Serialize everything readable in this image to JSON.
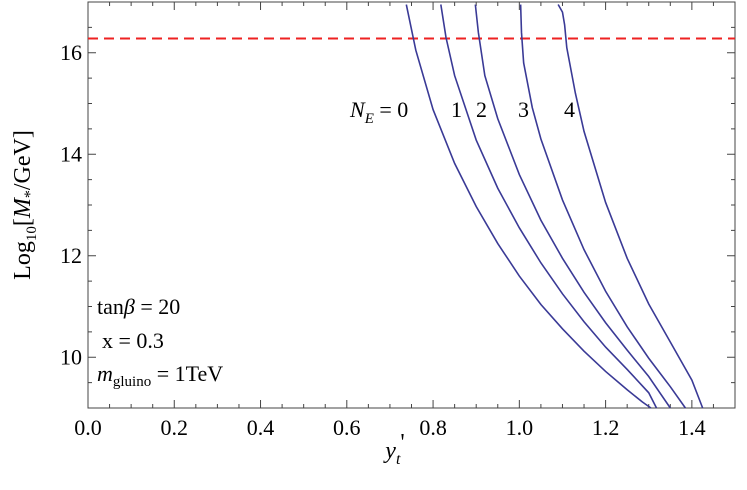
{
  "chart_data": {
    "type": "line",
    "xlabel_main": "y",
    "xlabel_sub": "t",
    "xlabel_prime": "'",
    "ylabel_pre": "Log",
    "ylabel_sub": "10",
    "ylabel_mid": "[",
    "ylabel_M": "M",
    "ylabel_star": "*",
    "ylabel_post": "/GeV]",
    "xlim": [
      0.0,
      1.5
    ],
    "ylim": [
      9.0,
      17.0
    ],
    "x_ticks": [
      0.0,
      0.2,
      0.4,
      0.6,
      0.8,
      1.0,
      1.2,
      1.4
    ],
    "x_tick_labels": [
      "0.0",
      "0.2",
      "0.4",
      "0.6",
      "0.8",
      "1.0",
      "1.2",
      "1.4"
    ],
    "y_ticks": [
      10,
      12,
      14,
      16
    ],
    "y_tick_labels": [
      "10",
      "12",
      "14",
      "16"
    ],
    "hline": {
      "y": 16.28,
      "color": "#ee2222",
      "style": "dashed"
    },
    "series_color": "#3a3a96",
    "series": [
      {
        "label": "0",
        "x": [
          0.738,
          0.76,
          0.8,
          0.85,
          0.9,
          0.95,
          1.0,
          1.05,
          1.1,
          1.15,
          1.2,
          1.25,
          1.285,
          1.305
        ],
        "y": [
          16.95,
          16.05,
          14.88,
          13.82,
          12.97,
          12.24,
          11.6,
          11.04,
          10.56,
          10.12,
          9.72,
          9.36,
          9.12,
          9.0
        ]
      },
      {
        "label": "1",
        "x": [
          0.818,
          0.83,
          0.85,
          0.9,
          0.95,
          1.0,
          1.05,
          1.1,
          1.15,
          1.2,
          1.25,
          1.3,
          1.318
        ],
        "y": [
          16.95,
          16.3,
          15.55,
          14.28,
          13.33,
          12.55,
          11.86,
          11.25,
          10.7,
          10.2,
          9.76,
          9.3,
          9.0
        ]
      },
      {
        "label": "2",
        "x": [
          0.898,
          0.905,
          0.92,
          0.95,
          1.0,
          1.05,
          1.1,
          1.15,
          1.2,
          1.25,
          1.3,
          1.35
        ],
        "y": [
          16.95,
          16.4,
          15.55,
          14.7,
          13.6,
          12.7,
          11.95,
          11.28,
          10.68,
          10.14,
          9.62,
          9.0
        ]
      },
      {
        "label": "3",
        "x": [
          1.003,
          1.005,
          1.01,
          1.03,
          1.05,
          1.1,
          1.15,
          1.2,
          1.25,
          1.3,
          1.35,
          1.385
        ],
        "y": [
          16.95,
          16.4,
          15.8,
          14.92,
          14.3,
          13.1,
          12.12,
          11.3,
          10.6,
          9.98,
          9.42,
          9.0
        ]
      },
      {
        "label": "4",
        "x": [
          1.09,
          1.1,
          1.105,
          1.11,
          1.13,
          1.15,
          1.2,
          1.25,
          1.3,
          1.35,
          1.4,
          1.425
        ],
        "y": [
          16.95,
          16.8,
          16.55,
          16.1,
          15.2,
          14.45,
          13.05,
          11.95,
          11.05,
          10.3,
          9.55,
          9.0
        ]
      }
    ],
    "annotations": {
      "ne_label_main": "N",
      "ne_label_sub": "E",
      "ne_label_eq": " = 0",
      "ne_values": [
        "1",
        "2",
        "3",
        "4"
      ],
      "tanbeta_pre": "tan",
      "tanbeta_beta": "β",
      "tanbeta_post": " = 20",
      "x_text": "x = 0.3",
      "mgluino_m": "m",
      "mgluino_sub": "gluino",
      "mgluino_post": " = 1TeV"
    }
  }
}
